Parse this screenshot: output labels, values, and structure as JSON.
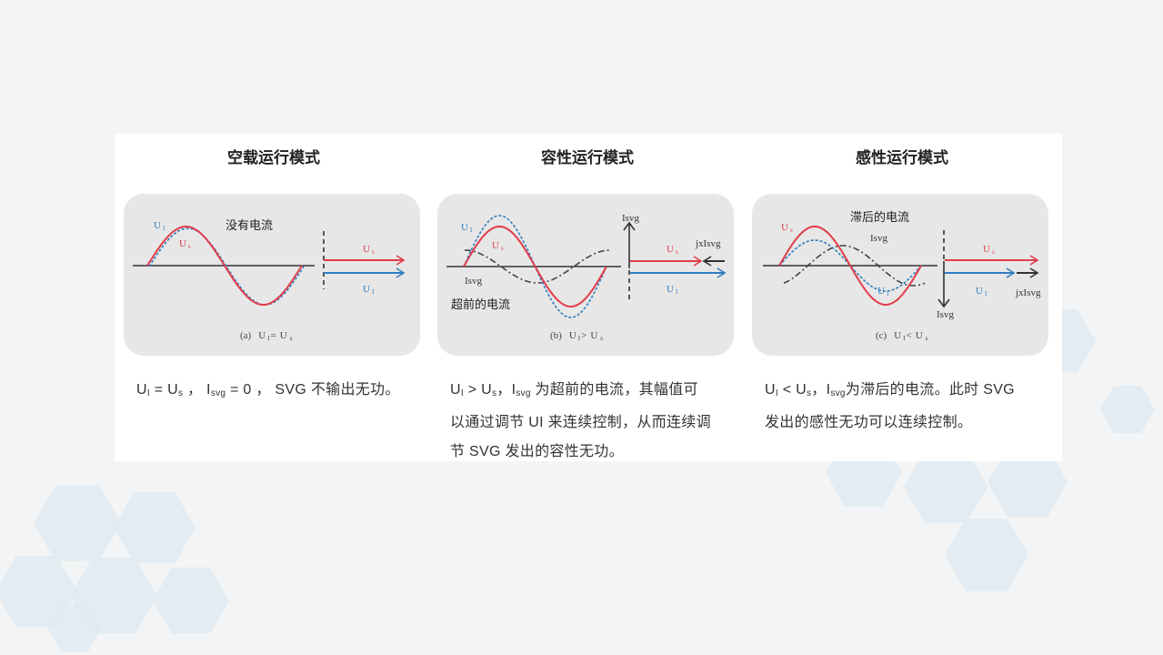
{
  "colors": {
    "red": "#e23c4a",
    "blue": "#2f7ec1",
    "gray": "#555555",
    "panel": "#e7e7e7",
    "hex": "#dde9f0"
  },
  "modes": [
    {
      "title": "空载运行模式",
      "annotation": "没有电流",
      "caption": {
        "prefix": "(a)",
        "left": {
          "main": "U",
          "sub": "I"
        },
        "op": "=",
        "right": {
          "main": "U",
          "sub": "s"
        }
      },
      "labels": {
        "ui": {
          "main": "U",
          "sub": "I"
        },
        "us": {
          "main": "U",
          "sub": "s"
        },
        "arrow_us": {
          "main": "U",
          "sub": "s"
        },
        "arrow_ui": {
          "main": "U",
          "sub": "I"
        }
      },
      "description": [
        {
          "t": "U"
        },
        {
          "s": "I"
        },
        {
          "t": " = U"
        },
        {
          "s": "s"
        },
        {
          "t": " ，  I"
        },
        {
          "s": "svg"
        },
        {
          "t": " = 0 ， SVG 不输出无功。"
        }
      ]
    },
    {
      "title": "容性运行模式",
      "annotation": "超前的电流",
      "caption": {
        "prefix": "(b)",
        "left": {
          "main": "U",
          "sub": "I"
        },
        "op": ">",
        "right": {
          "main": "U",
          "sub": "s"
        }
      },
      "labels": {
        "ui": {
          "main": "U",
          "sub": "I"
        },
        "us": {
          "main": "U",
          "sub": "s"
        },
        "isvg_wave": "Isvg",
        "isvg_axis": "Isvg",
        "jx": "jxIsvg",
        "arrow_us": {
          "main": "U",
          "sub": "s"
        },
        "arrow_ui": {
          "main": "U",
          "sub": "I"
        }
      },
      "description": [
        {
          "t": "U"
        },
        {
          "s": "I"
        },
        {
          "t": " > U"
        },
        {
          "s": "s"
        },
        {
          "t": "，I"
        },
        {
          "s": "svg"
        },
        {
          "t": " 为超前的电流，其幅值可"
        },
        {
          "br": true
        },
        {
          "t": "以通过调节 UI 来连续控制，从而连续调"
        },
        {
          "br": true
        },
        {
          "t": "节 SVG 发出的容性无功。"
        }
      ]
    },
    {
      "title": "感性运行模式",
      "annotation": "滞后的电流",
      "caption": {
        "prefix": "(c)",
        "left": {
          "main": "U",
          "sub": "I"
        },
        "op": "<",
        "right": {
          "main": "U",
          "sub": "s"
        }
      },
      "labels": {
        "ui": {
          "main": "U",
          "sub": "I"
        },
        "us": {
          "main": "U",
          "sub": "s"
        },
        "isvg_wave": "Isvg",
        "isvg_axis": "Isvg",
        "jx": "jxIsvg",
        "arrow_us": {
          "main": "U",
          "sub": "s"
        },
        "arrow_ui": {
          "main": "U",
          "sub": "I"
        }
      },
      "description": [
        {
          "t": "U"
        },
        {
          "s": "I"
        },
        {
          "t": " <   U"
        },
        {
          "s": "s"
        },
        {
          "t": "，I"
        },
        {
          "s": "svg"
        },
        {
          "t": "为滞后的电流。此时 SVG"
        },
        {
          "br": true
        },
        {
          "t": "发出的感性无功可以连续控制。"
        }
      ]
    }
  ]
}
